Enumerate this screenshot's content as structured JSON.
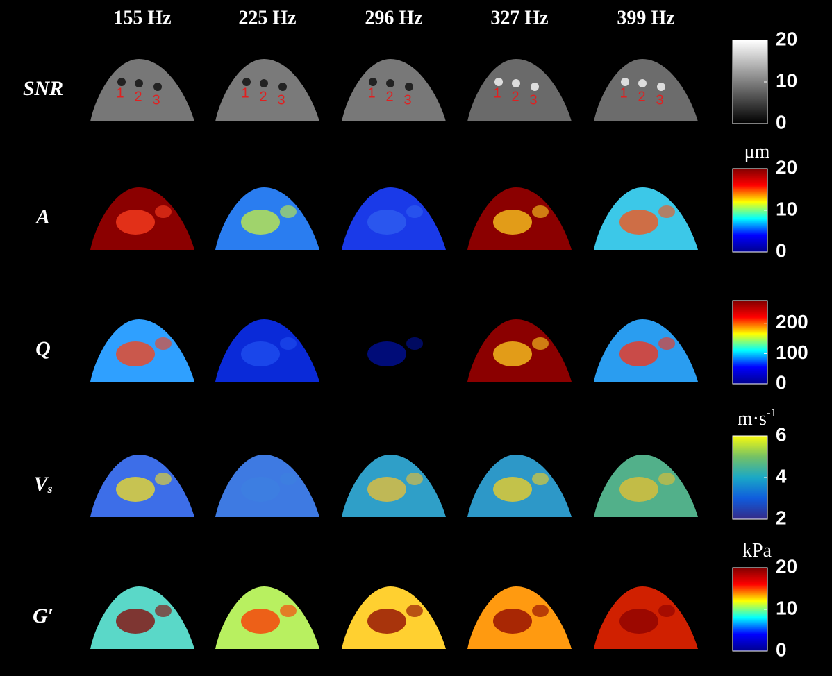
{
  "columns": [
    "155 Hz",
    "225 Hz",
    "296 Hz",
    "327 Hz",
    "399 Hz"
  ],
  "rows": [
    {
      "label": {
        "base": "SNR"
      },
      "colorbar": {
        "colormap": "gray",
        "range": [
          0,
          20
        ],
        "ticks": [
          20,
          10,
          0
        ]
      },
      "inclusion_labels": [
        "1",
        "2",
        "3"
      ]
    },
    {
      "label": {
        "base": "A"
      },
      "colorbar": {
        "unit": {
          "base": "μm"
        },
        "colormap": "jet",
        "range": [
          0,
          20
        ],
        "ticks": [
          20,
          10,
          0
        ]
      }
    },
    {
      "label": {
        "base": "Q"
      },
      "colorbar": {
        "colormap": "jet",
        "range": [
          0,
          275
        ],
        "ticks": [
          200,
          100,
          0
        ]
      }
    },
    {
      "label": {
        "base": "V",
        "sub": "s"
      },
      "colorbar": {
        "unit": {
          "base": "m·s",
          "sup": "-1"
        },
        "colormap": "parula",
        "range": [
          2,
          6
        ],
        "ticks": [
          6,
          4,
          2
        ]
      }
    },
    {
      "label": {
        "base": "G′"
      },
      "colorbar": {
        "unit": {
          "base": "kPa"
        },
        "colormap": "jet",
        "range": [
          0,
          20
        ],
        "ticks": [
          20,
          10,
          0
        ]
      }
    }
  ]
}
